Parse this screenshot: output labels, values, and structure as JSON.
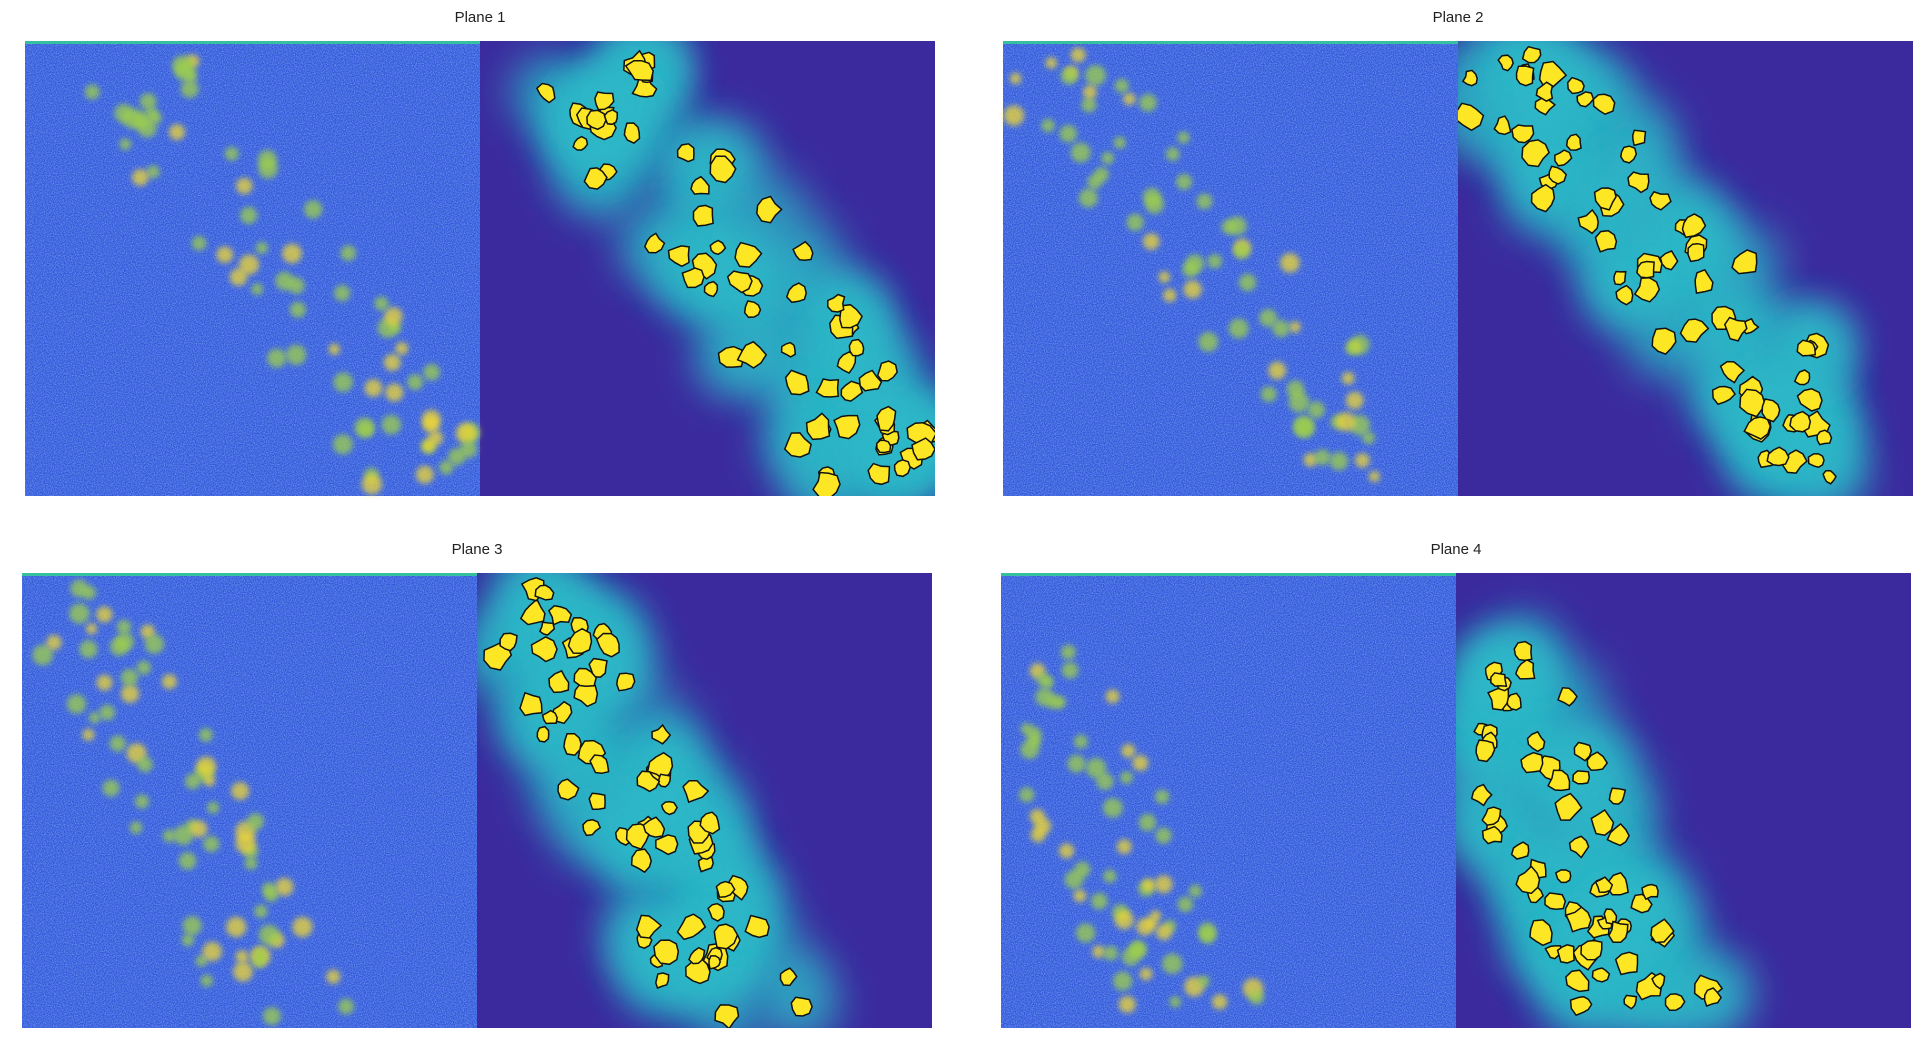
{
  "panels": [
    {
      "title": "Plane 1"
    },
    {
      "title": "Plane 2"
    },
    {
      "title": "Plane 3"
    },
    {
      "title": "Plane 4"
    }
  ]
}
